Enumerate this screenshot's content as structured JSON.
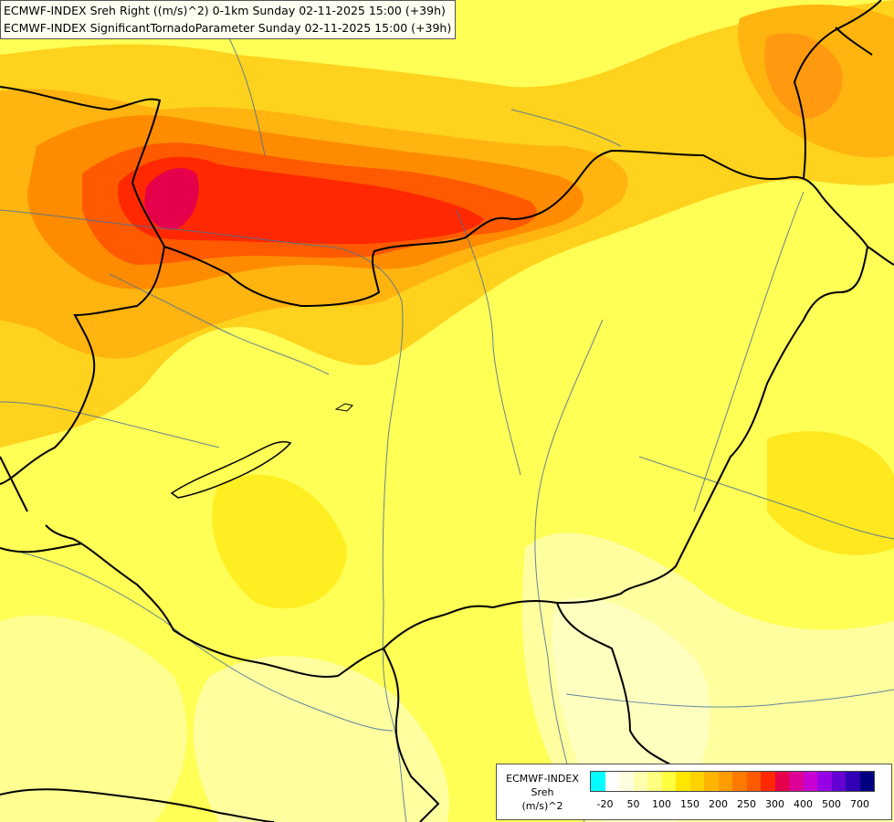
{
  "header": {
    "line1": "ECMWF-INDEX Sreh Right ((m/s)^2) 0-1km Sunday 02-11-2025 15:00 (+39h)",
    "line2": "ECMWF-INDEX SignificantTornadoParameter Sunday 02-11-2025 15:00 (+39h)"
  },
  "legend": {
    "name_lines": [
      "ECMWF-INDEX",
      "Sreh",
      "(m/s)^2"
    ],
    "colors": [
      "#00ffff",
      "#ffffff",
      "#ffffe0",
      "#ffffb0",
      "#ffff80",
      "#ffff40",
      "#ffe600",
      "#ffd200",
      "#ffb400",
      "#ff9c00",
      "#ff7a00",
      "#ff5a00",
      "#ff2800",
      "#e6004b",
      "#dc0096",
      "#c800d2",
      "#9600e6",
      "#6400d2",
      "#3200b4",
      "#000080"
    ],
    "ticks": [
      {
        "label": "-20",
        "index": 1
      },
      {
        "label": "50",
        "index": 3
      },
      {
        "label": "100",
        "index": 5
      },
      {
        "label": "150",
        "index": 7
      },
      {
        "label": "200",
        "index": 9
      },
      {
        "label": "250",
        "index": 11
      },
      {
        "label": "300",
        "index": 13
      },
      {
        "label": "400",
        "index": 15
      },
      {
        "label": "500",
        "index": 17
      },
      {
        "label": "700",
        "index": 19
      }
    ]
  }
}
